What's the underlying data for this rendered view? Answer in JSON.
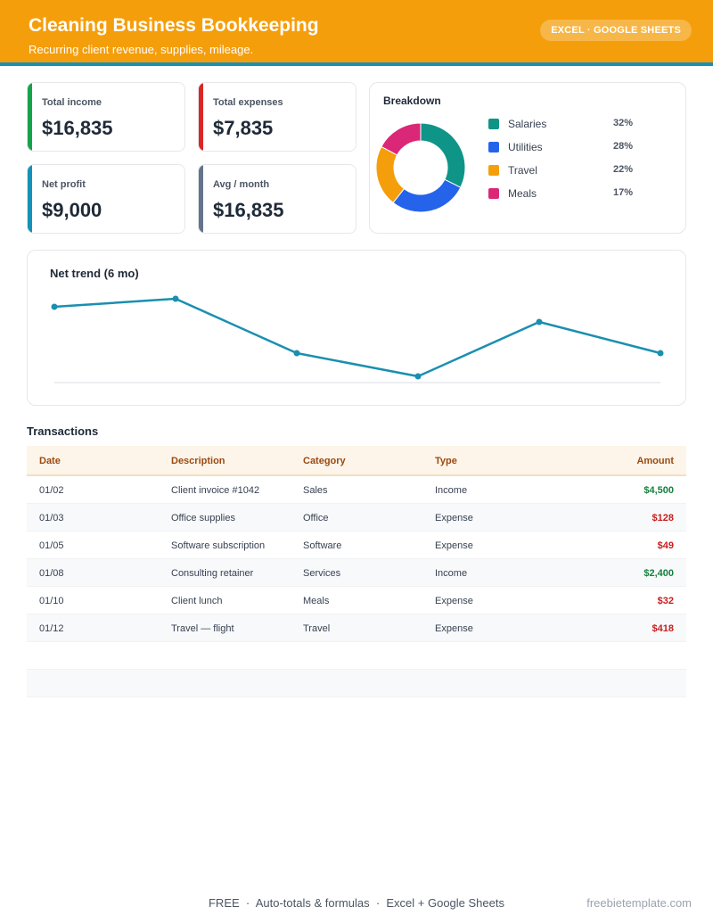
{
  "header": {
    "title": "Cleaning Business Bookkeeping",
    "subtitle": "Recurring client revenue, supplies, mileage.",
    "badge": "EXCEL · GOOGLE SHEETS"
  },
  "colors": {
    "header_bg": "#f59e0b",
    "header_accent": "#1591b8",
    "income": "#16a34a",
    "expenses": "#dc2626",
    "net_profit": "#1591b8",
    "avg_month": "#64748b",
    "trend_line": "#1a8fb0"
  },
  "kpis": [
    {
      "label": "Total income",
      "value": "$16,835"
    },
    {
      "label": "Total expenses",
      "value": "$7,835"
    },
    {
      "label": "Net profit",
      "value": "$9,000"
    },
    {
      "label": "Avg / month",
      "value": "$16,835"
    }
  ],
  "breakdown": {
    "title": "Breakdown",
    "items": [
      {
        "label": "Salaries",
        "pct": "32%",
        "value": 32,
        "color": "#0f9488"
      },
      {
        "label": "Utilities",
        "pct": "28%",
        "value": 28,
        "color": "#2563eb"
      },
      {
        "label": "Travel",
        "pct": "22%",
        "value": 22,
        "color": "#f59e0b"
      },
      {
        "label": "Meals",
        "pct": "17%",
        "value": 17,
        "color": "#db2777"
      }
    ]
  },
  "chart_data": {
    "type": "line",
    "title": "Net trend (6 mo)",
    "x": [
      1,
      2,
      3,
      4,
      5,
      6
    ],
    "series": [
      {
        "values": [
          85,
          94,
          33,
          7,
          68,
          33
        ]
      }
    ],
    "ylim": [
      0,
      100
    ],
    "grid": false
  },
  "transactions": {
    "title": "Transactions",
    "columns": [
      "Date",
      "Description",
      "Category",
      "Type",
      "Amount"
    ],
    "rows": [
      {
        "date": "01/02",
        "description": "Client invoice #1042",
        "category": "Sales",
        "type": "Income",
        "amount": "$4,500"
      },
      {
        "date": "01/03",
        "description": "Office supplies",
        "category": "Office",
        "type": "Expense",
        "amount": "$128"
      },
      {
        "date": "01/05",
        "description": "Software subscription",
        "category": "Software",
        "type": "Expense",
        "amount": "$49"
      },
      {
        "date": "01/08",
        "description": "Consulting retainer",
        "category": "Services",
        "type": "Income",
        "amount": "$2,400"
      },
      {
        "date": "01/10",
        "description": "Client lunch",
        "category": "Meals",
        "type": "Expense",
        "amount": "$32"
      },
      {
        "date": "01/12",
        "description": "Travel — flight",
        "category": "Travel",
        "type": "Expense",
        "amount": "$418"
      }
    ]
  },
  "footer": {
    "center": "FREE  ·  Auto-totals & formulas  ·  Excel + Google Sheets",
    "right": "freebietemplate.com"
  }
}
